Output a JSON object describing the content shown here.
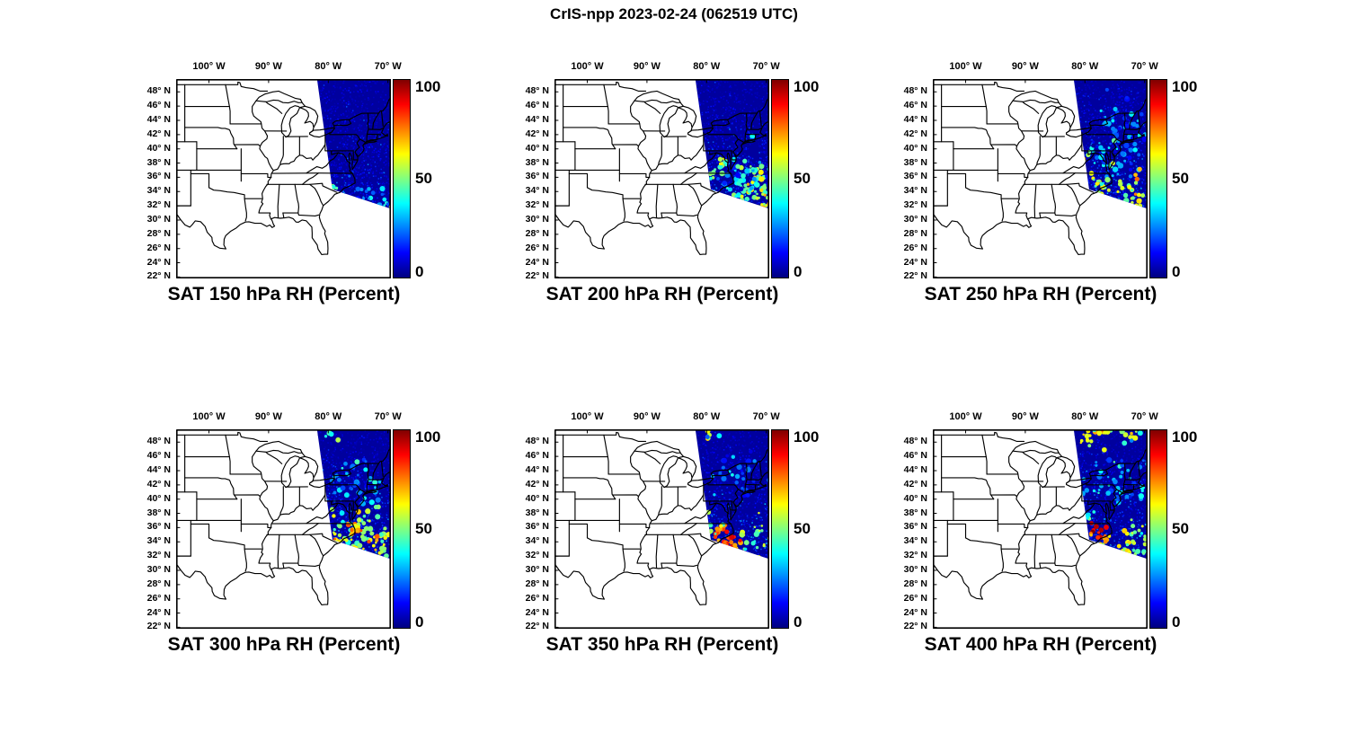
{
  "figure_title": "CrIS-npp 2023-02-24 (062519 UTC)",
  "axes": {
    "lon_tick_labels": [
      "100° W",
      "90° W",
      "80° W",
      "70° W"
    ],
    "lon_tick_values": [
      -100,
      -90,
      -80,
      -70
    ],
    "lat_tick_labels": [
      "48° N",
      "46° N",
      "44° N",
      "42° N",
      "40° N",
      "38° N",
      "36° N",
      "34° N",
      "32° N",
      "30° N",
      "28° N",
      "26° N",
      "24° N",
      "22° N"
    ],
    "lat_tick_values": [
      48,
      46,
      44,
      42,
      40,
      38,
      36,
      34,
      32,
      30,
      28,
      26,
      24,
      22
    ]
  },
  "colorbar": {
    "tick_labels": [
      "100",
      "50",
      "0"
    ],
    "range": [
      0,
      100
    ],
    "colormap": "jet"
  },
  "chart_data": {
    "type": "heatmap",
    "title": "CrIS-npp 2023-02-24 (062519 UTC)",
    "instrument": "CrIS-npp",
    "variable": "SAT Relative Humidity",
    "units": "Percent",
    "colormap": "jet",
    "colorbar_range": [
      0,
      100
    ],
    "colorbar_ticks": [
      0,
      50,
      100
    ],
    "map_extent": {
      "lon_deg": [
        -105.5,
        -69.5
      ],
      "lat_deg": [
        21.8,
        49.8
      ]
    },
    "lon_ticks_deg": [
      -100,
      -90,
      -80,
      -70
    ],
    "lat_ticks_deg": [
      48,
      46,
      44,
      42,
      40,
      38,
      36,
      34,
      32,
      30,
      28,
      26,
      24,
      22
    ],
    "swath_corners_lonlat": [
      [
        -82.0,
        50.5
      ],
      [
        -64.0,
        51.5
      ],
      [
        -67.0,
        30.9
      ],
      [
        -79.3,
        34.3
      ]
    ],
    "background_rh_percent": 3,
    "panels": [
      {
        "pressure_hPa": 150,
        "title": "SAT 150 hPa RH (Percent)",
        "summary": "Swath nearly uniform 0-15% RH (dark blue); a few 25-50% specks near 32-35N off the Carolina coast",
        "noise": 8,
        "hotspots": [
          {
            "lon": -79.2,
            "lat": 34.6,
            "v": 52,
            "s": 0.35,
            "n": 5
          },
          {
            "lon": -73.6,
            "lat": 33.1,
            "v": 32,
            "s": 0.7,
            "n": 7
          },
          {
            "lon": -70.4,
            "lat": 32.4,
            "v": 38,
            "s": 0.5,
            "n": 6
          },
          {
            "lon": -74.5,
            "lat": 32.6,
            "v": 24,
            "s": 2.2,
            "n": 16
          }
        ]
      },
      {
        "pressure_hPa": 200,
        "title": "SAT 200 hPa RH (Percent)",
        "summary": "Mostly 0-15% north; 30-55% cyan-green mottling south of ~37N along the coast; ~60% patch near Chesapeake Bay",
        "noise": 11,
        "hotspots": [
          {
            "lon": -77.2,
            "lat": 37.9,
            "v": 60,
            "s": 0.6,
            "n": 10
          },
          {
            "lon": -78.6,
            "lat": 36.6,
            "v": 48,
            "s": 0.6,
            "n": 8
          },
          {
            "lon": -74.0,
            "lat": 33.6,
            "v": 46,
            "s": 2.4,
            "n": 45
          },
          {
            "lon": -70.6,
            "lat": 33.2,
            "v": 52,
            "s": 1.8,
            "n": 30
          },
          {
            "lon": -71.2,
            "lat": 35.6,
            "v": 46,
            "s": 1.4,
            "n": 20
          },
          {
            "lon": -74.5,
            "lat": 36.4,
            "v": 30,
            "s": 2.2,
            "n": 30
          },
          {
            "lon": -69.9,
            "lat": 31.9,
            "v": 55,
            "s": 1.0,
            "n": 10
          }
        ]
      },
      {
        "pressure_hPa": 250,
        "title": "SAT 250 hPa RH (Percent)",
        "summary": "Widespread 20-35% mottling; 50-70% yellow patches near the coast south of 36N; isolated ~85% speck near 31.5N",
        "noise": 13,
        "hotspots": [
          {
            "lon": -75.0,
            "lat": 40.0,
            "v": 28,
            "s": 3.0,
            "n": 60
          },
          {
            "lon": -72.5,
            "lat": 44.0,
            "v": 24,
            "s": 2.5,
            "n": 35
          },
          {
            "lon": -73.6,
            "lat": 33.6,
            "v": 58,
            "s": 2.2,
            "n": 40
          },
          {
            "lon": -77.4,
            "lat": 35.1,
            "v": 52,
            "s": 1.1,
            "n": 16
          },
          {
            "lon": -75.6,
            "lat": 31.9,
            "v": 68,
            "s": 1.0,
            "n": 9
          },
          {
            "lon": -70.6,
            "lat": 32.0,
            "v": 62,
            "s": 0.9,
            "n": 8
          },
          {
            "lon": -74.6,
            "lat": 31.6,
            "v": 84,
            "s": 0.3,
            "n": 3
          },
          {
            "lon": -80.2,
            "lat": 38.6,
            "v": 55,
            "s": 0.4,
            "n": 4
          }
        ]
      },
      {
        "pressure_hPa": 300,
        "title": "SAT 300 hPa RH (Percent)",
        "summary": "20-30% mottling north; broad 50-70% yellow-orange band 33-37N near the Atlantic coast",
        "noise": 12,
        "hotspots": [
          {
            "lon": -74.5,
            "lat": 42.0,
            "v": 26,
            "s": 2.8,
            "n": 50
          },
          {
            "lon": -75.0,
            "lat": 35.2,
            "v": 52,
            "s": 2.2,
            "n": 55
          },
          {
            "lon": -75.8,
            "lat": 35.9,
            "v": 70,
            "s": 0.9,
            "n": 13
          },
          {
            "lon": -71.6,
            "lat": 34.1,
            "v": 66,
            "s": 1.1,
            "n": 11
          },
          {
            "lon": -78.4,
            "lat": 34.6,
            "v": 58,
            "s": 0.9,
            "n": 10
          },
          {
            "lon": -79.5,
            "lat": 48.8,
            "v": 45,
            "s": 0.8,
            "n": 6
          },
          {
            "lon": -70.3,
            "lat": 33.0,
            "v": 55,
            "s": 1.2,
            "n": 12
          }
        ]
      },
      {
        "pressure_hPa": 350,
        "title": "SAT 350 hPa RH (Percent)",
        "summary": "Low RH north with 20-30% specks; strong 70-85% orange-red cluster 33-36N off the Carolinas",
        "noise": 11,
        "hotspots": [
          {
            "lon": -79.0,
            "lat": 49.4,
            "v": 52,
            "s": 1.2,
            "n": 8
          },
          {
            "lon": -75.0,
            "lat": 44.0,
            "v": 22,
            "s": 2.6,
            "n": 35
          },
          {
            "lon": -77.4,
            "lat": 35.3,
            "v": 78,
            "s": 0.9,
            "n": 15
          },
          {
            "lon": -74.9,
            "lat": 33.7,
            "v": 74,
            "s": 1.0,
            "n": 13
          },
          {
            "lon": -76.4,
            "lat": 33.9,
            "v": 84,
            "s": 0.5,
            "n": 7
          },
          {
            "lon": -72.0,
            "lat": 33.6,
            "v": 56,
            "s": 2.0,
            "n": 32
          },
          {
            "lon": -79.0,
            "lat": 36.6,
            "v": 54,
            "s": 0.9,
            "n": 10
          },
          {
            "lon": -80.1,
            "lat": 38.4,
            "v": 44,
            "s": 0.7,
            "n": 7
          }
        ]
      },
      {
        "pressure_hPa": 400,
        "title": "SAT 400 hPa RH (Percent)",
        "summary": "50-65% yellow band along the northern swath edge; ~90%+ dark-red blob near 35.4N 78.3W; 50-70% coastal band 32-35N",
        "noise": 12,
        "hotspots": [
          {
            "lon": -77.0,
            "lat": 49.4,
            "v": 58,
            "s": 2.2,
            "n": 30
          },
          {
            "lon": -72.0,
            "lat": 49.0,
            "v": 52,
            "s": 1.8,
            "n": 18
          },
          {
            "lon": -80.2,
            "lat": 48.5,
            "v": 62,
            "s": 0.9,
            "n": 8
          },
          {
            "lon": -74.5,
            "lat": 43.0,
            "v": 28,
            "s": 2.8,
            "n": 45
          },
          {
            "lon": -78.3,
            "lat": 35.4,
            "v": 93,
            "s": 0.6,
            "n": 10
          },
          {
            "lon": -77.0,
            "lat": 34.4,
            "v": 68,
            "s": 0.9,
            "n": 11
          },
          {
            "lon": -73.2,
            "lat": 33.0,
            "v": 56,
            "s": 2.2,
            "n": 38
          },
          {
            "lon": -70.2,
            "lat": 34.2,
            "v": 48,
            "s": 1.3,
            "n": 16
          },
          {
            "lon": -79.6,
            "lat": 37.6,
            "v": 38,
            "s": 0.9,
            "n": 9
          }
        ]
      }
    ]
  }
}
